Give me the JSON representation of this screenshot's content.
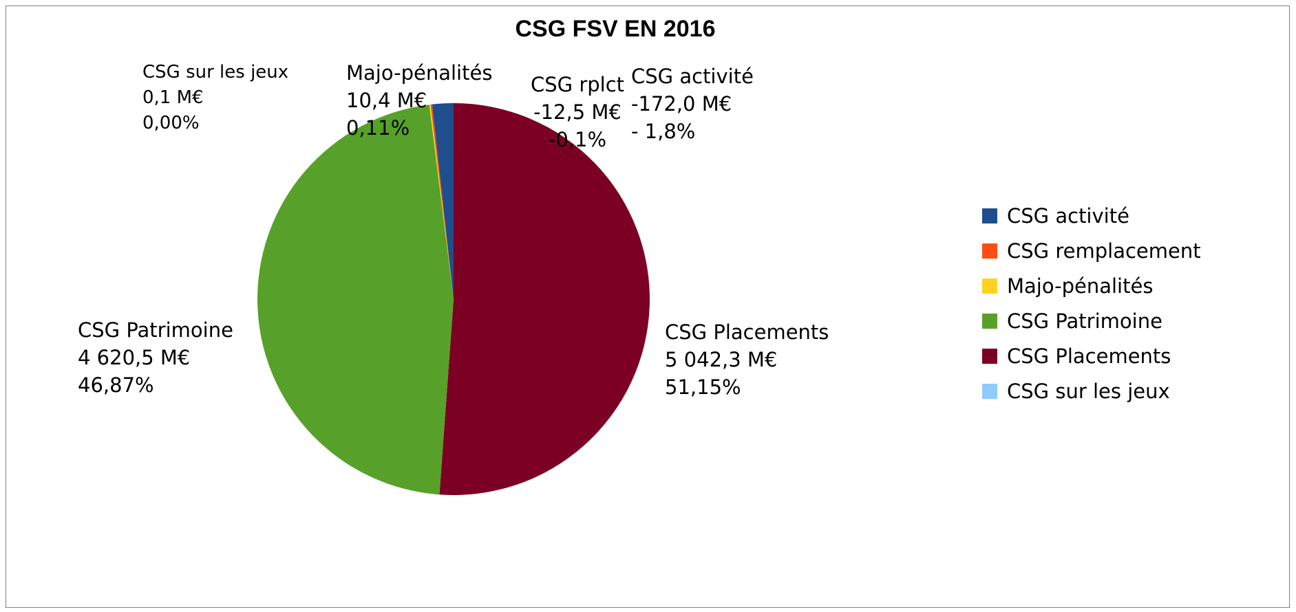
{
  "chart_data": {
    "type": "pie",
    "title": "CSG FSV EN 2016",
    "series": [
      {
        "name": "",
        "slices": [
          {
            "label": "CSG activité",
            "legend": "CSG activité",
            "value": 172.0,
            "color": "#1f4e8c",
            "data_label": [
              "CSG activité",
              "-172,0 M€",
              "- 1,8%"
            ]
          },
          {
            "label": "CSG remplacement",
            "legend": "CSG remplacement",
            "value": 12.5,
            "color": "#ff4d14",
            "data_label": [
              "CSG rplct",
              "-12,5 M€",
              "-0,1%"
            ]
          },
          {
            "label": "Majo-pénalités",
            "legend": "Majo-pénalités",
            "value": 10.4,
            "color": "#ffd21f",
            "data_label": [
              "Majo-pénalités",
              "10,4 M€",
              "0,11%"
            ]
          },
          {
            "label": "CSG Patrimoine",
            "legend": "CSG Patrimoine",
            "value": 4620.5,
            "color": "#57a12a",
            "data_label": [
              "CSG Patrimoine",
              "4 620,5 M€",
              "46,87%"
            ]
          },
          {
            "label": "CSG Placements",
            "legend": "CSG Placements",
            "value": 5042.3,
            "color": "#7b0024",
            "data_label": [
              "CSG Placements",
              "5 042,3 M€",
              "51,15%"
            ]
          },
          {
            "label": "CSG sur les jeux",
            "legend": "CSG sur les jeux",
            "value": 0.1,
            "color": "#8ecbff",
            "data_label": [
              "CSG sur les jeux",
              "0,1 M€",
              "0,00%"
            ]
          }
        ]
      }
    ],
    "legend_position": "right",
    "start_angle_deg": 0,
    "direction": "clockwise"
  }
}
